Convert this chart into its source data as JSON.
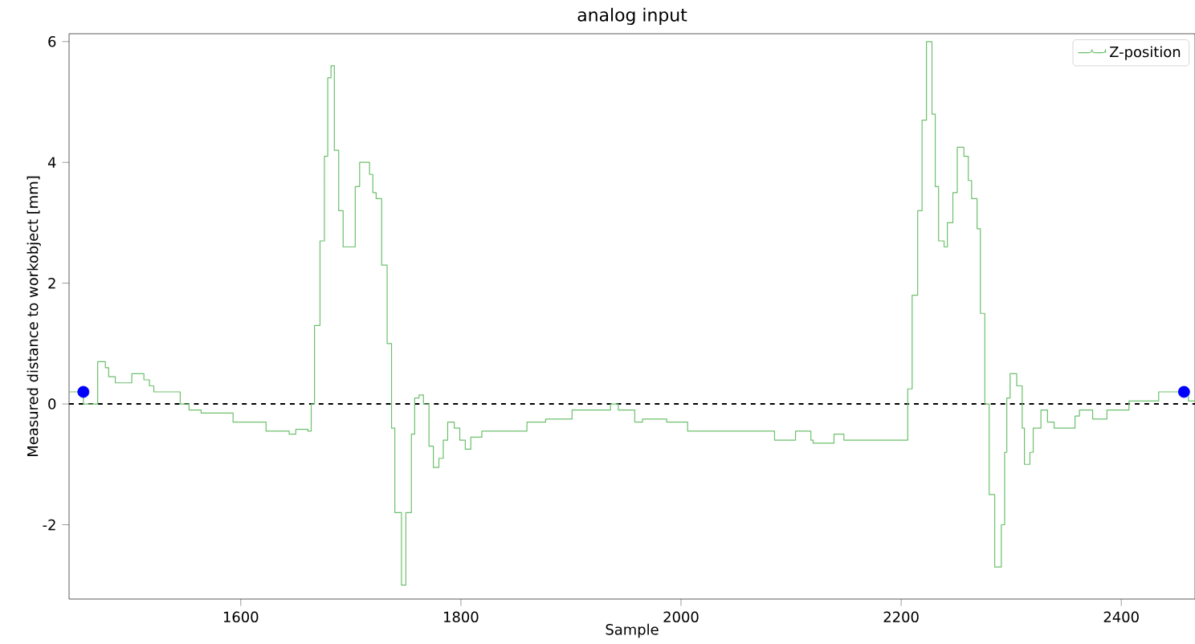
{
  "chart_data": {
    "type": "step",
    "title": "analog input",
    "xlabel": "Sample",
    "ylabel": "Measured distance to workobject [mm]",
    "series": [
      {
        "name": "Z-position",
        "color": "#6cc06c",
        "x": [
          1444,
          1457,
          1467,
          1470,
          1477,
          1480,
          1486,
          1501,
          1512,
          1517,
          1521,
          1545,
          1553,
          1564,
          1593,
          1623,
          1644,
          1650,
          1661,
          1664,
          1667,
          1672,
          1676,
          1679,
          1682,
          1685,
          1689,
          1693,
          1704,
          1708,
          1717,
          1720,
          1723,
          1728,
          1733,
          1737,
          1740,
          1746,
          1750,
          1755,
          1758,
          1762,
          1766,
          1771,
          1775,
          1780,
          1784,
          1788,
          1794,
          1799,
          1804,
          1809,
          1819,
          1860,
          1877,
          1901,
          1936,
          1943,
          1958,
          1965,
          1987,
          2006,
          2085,
          2104,
          2118,
          2120,
          2139,
          2148,
          2206,
          2210,
          2215,
          2219,
          2223,
          2228,
          2231,
          2234,
          2239,
          2242,
          2247,
          2251,
          2257,
          2261,
          2264,
          2269,
          2272,
          2276,
          2280,
          2285,
          2291,
          2294,
          2296,
          2299,
          2305,
          2310,
          2312,
          2317,
          2320,
          2327,
          2333,
          2339,
          2358,
          2362,
          2374,
          2387,
          2407,
          2434,
          2461,
          2467
        ],
        "values": [
          0.2,
          0,
          0,
          0.7,
          0.6,
          0.45,
          0.35,
          0.5,
          0.4,
          0.3,
          0.2,
          0,
          -0.1,
          -0.15,
          -0.3,
          -0.45,
          -0.5,
          -0.42,
          -0.45,
          0,
          1.3,
          2.7,
          4.1,
          5.4,
          5.6,
          4.2,
          3.2,
          2.6,
          3.6,
          4.0,
          3.8,
          3.5,
          3.4,
          2.3,
          1.0,
          -0.4,
          -1.8,
          -3.0,
          -1.8,
          -0.5,
          0.1,
          0.15,
          0,
          -0.7,
          -1.05,
          -0.9,
          -0.6,
          -0.3,
          -0.4,
          -0.6,
          -0.75,
          -0.55,
          -0.45,
          -0.3,
          -0.25,
          -0.1,
          0,
          -0.1,
          -0.3,
          -0.25,
          -0.3,
          -0.45,
          -0.6,
          -0.45,
          -0.6,
          -0.65,
          -0.5,
          -0.6,
          0.25,
          1.8,
          3.2,
          4.7,
          6.0,
          4.8,
          3.6,
          2.7,
          2.6,
          3.0,
          3.5,
          4.25,
          4.1,
          3.7,
          3.4,
          2.9,
          1.5,
          0,
          -1.5,
          -2.7,
          -2.0,
          -0.8,
          0.1,
          0.5,
          0.3,
          -0.4,
          -1.0,
          -0.8,
          -0.4,
          -0.1,
          -0.3,
          -0.4,
          -0.2,
          -0.1,
          -0.25,
          -0.1,
          0.05,
          0.2,
          0.05,
          0.05
        ]
      },
      {
        "type": "scatter",
        "color": "#0000ff",
        "x": [
          1457,
          2457
        ],
        "values": [
          0.2,
          0.2
        ]
      }
    ],
    "ref_lines": [
      {
        "axis": "y",
        "value": 0,
        "color": "#000000",
        "line_style": "dashed"
      }
    ],
    "xlim": [
      1444,
      2467
    ],
    "ylim": [
      -3.23,
      6.13
    ],
    "xticks": [
      1600,
      1800,
      2000,
      2200,
      2400
    ],
    "yticks": [
      -2,
      0,
      2,
      4,
      6
    ],
    "legend": "top right",
    "grid": false
  }
}
